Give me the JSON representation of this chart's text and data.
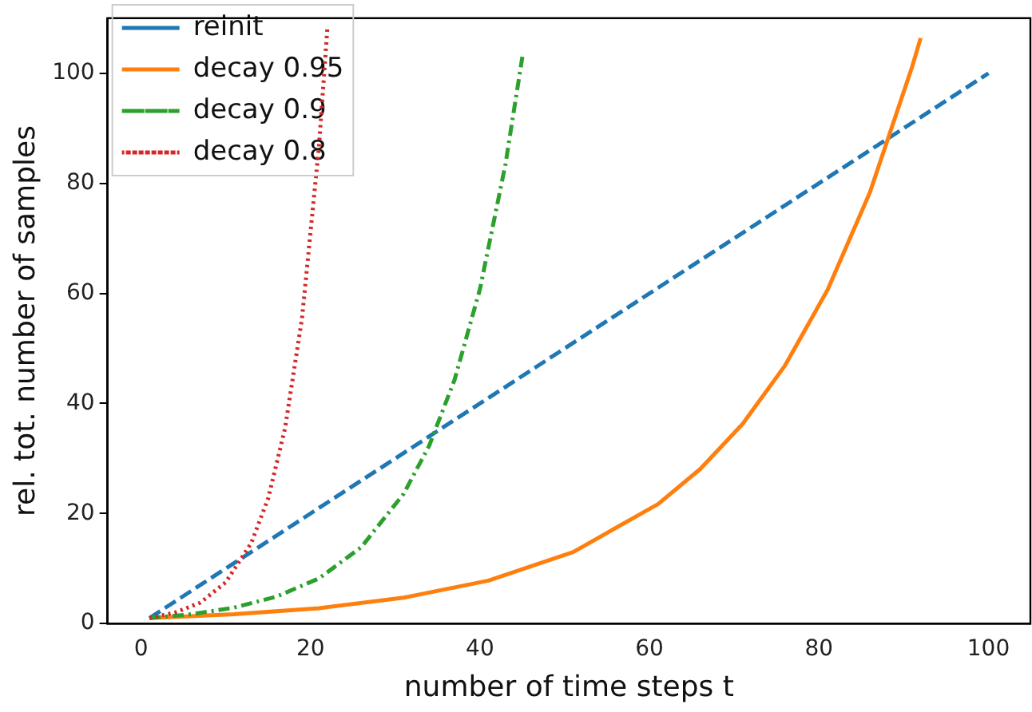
{
  "chart_data": {
    "type": "line",
    "xlabel": "number of time steps t",
    "ylabel": "rel. tot. number of samples",
    "xlim": [
      -3.95,
      104.95
    ],
    "xticks": [
      0,
      20,
      40,
      60,
      80,
      100
    ],
    "ylim": [
      0,
      110
    ],
    "yticks": [
      0,
      20,
      40,
      60,
      80,
      100
    ],
    "grid": false,
    "legend": "top left",
    "marker": "none",
    "series": [
      {
        "name": "reinit",
        "color": "#1f77b4",
        "line_style": "dashed",
        "x": [
          1,
          100
        ],
        "values": [
          1,
          100
        ]
      },
      {
        "name": "decay 0.95",
        "color": "#ff7f0e",
        "line_style": "solid",
        "x": [
          1,
          11,
          21,
          31,
          41,
          51,
          61,
          66,
          71,
          76,
          81,
          86,
          91,
          92
        ],
        "values": [
          1,
          1.7,
          2.8,
          4.7,
          7.8,
          13,
          21.7,
          28.1,
          36.3,
          46.9,
          60.6,
          78.3,
          101.2,
          106.4
        ]
      },
      {
        "name": "decay 0.9",
        "color": "#2ca02c",
        "line_style": "dashdot",
        "x": [
          1,
          6,
          11,
          16,
          21,
          26,
          31,
          34,
          37,
          40,
          43,
          45
        ],
        "values": [
          1,
          1.7,
          2.9,
          4.9,
          8.2,
          13.9,
          23.6,
          32.3,
          44.3,
          60.8,
          83.4,
          103
        ]
      },
      {
        "name": "decay 0.8",
        "color": "#d62728",
        "line_style": "dotted",
        "x": [
          1,
          4,
          7,
          10,
          13,
          15,
          17,
          19,
          21,
          22
        ],
        "values": [
          1,
          2,
          3.8,
          7.5,
          14.6,
          22.7,
          35.5,
          55.5,
          86.7,
          108.4
        ]
      }
    ]
  }
}
